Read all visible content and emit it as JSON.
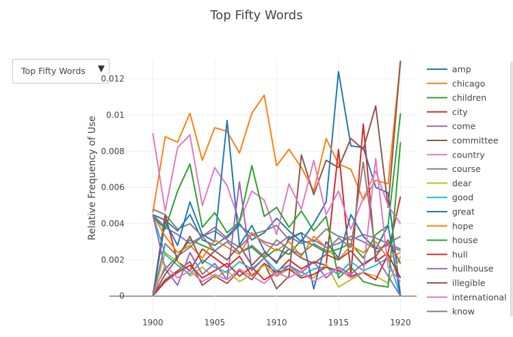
{
  "title": "Top Fifty Words",
  "dropdown": {
    "selected": "Top Fifty Words"
  },
  "chart_data": {
    "type": "line",
    "title": "Top Fifty Words",
    "xlabel": "",
    "ylabel": "Relative Frequency of Use",
    "x": [
      1900,
      1901,
      1902,
      1903,
      1904,
      1905,
      1906,
      1907,
      1908,
      1909,
      1910,
      1911,
      1912,
      1913,
      1914,
      1915,
      1916,
      1917,
      1918,
      1919,
      1920
    ],
    "xlim": [
      1896.5,
      1921.3
    ],
    "ylim": [
      -0.0009,
      0.0131
    ],
    "xticks": [
      "1900",
      "1905",
      "1910",
      "1915",
      "1920"
    ],
    "xtick_values": [
      1900,
      1905,
      1910,
      1915,
      1920
    ],
    "yticks": [
      "0",
      "0.002",
      "0.004",
      "0.006",
      "0.008",
      "0.01",
      "0.012"
    ],
    "ytick_values": [
      0,
      0.002,
      0.004,
      0.006,
      0.008,
      0.01,
      0.012
    ],
    "grid": true,
    "legend_position": "right",
    "series": [
      {
        "name": "amp",
        "color": "#1f77b4",
        "values": [
          0.0045,
          0.0042,
          0.0036,
          0.0045,
          0.0031,
          0.0028,
          0.0033,
          0.004,
          0.0031,
          0.0035,
          0.0043,
          0.0036,
          0.003,
          0.004,
          0.0052,
          0.0124,
          0.0083,
          0.0082,
          0.006,
          0.0057,
          0.0
        ]
      },
      {
        "name": "chicago",
        "color": "#ff7f0e",
        "values": [
          0.0046,
          0.0088,
          0.0085,
          0.0101,
          0.0075,
          0.0093,
          0.0091,
          0.0079,
          0.0101,
          0.0111,
          0.0072,
          0.0081,
          0.0071,
          0.0058,
          0.0087,
          0.0073,
          0.007,
          0.0053,
          0.0064,
          0.0062,
          0.013
        ]
      },
      {
        "name": "children",
        "color": "#2ca02c",
        "values": [
          0.0002,
          0.0015,
          0.0022,
          0.0031,
          0.0028,
          0.0025,
          0.003,
          0.0024,
          0.0027,
          0.0021,
          0.0026,
          0.0023,
          0.0031,
          0.0028,
          0.0024,
          0.0026,
          0.0029,
          0.0021,
          0.0034,
          0.0039,
          0.0101
        ]
      },
      {
        "name": "city",
        "color": "#d62728",
        "values": [
          0.0,
          0.0045,
          0.0019,
          0.0014,
          0.0026,
          0.0021,
          0.0016,
          0.0022,
          0.0011,
          0.0018,
          0.0013,
          0.002,
          0.0015,
          0.0019,
          0.0017,
          0.0081,
          0.0012,
          0.0095,
          0.0019,
          0.0024,
          0.0055
        ]
      },
      {
        "name": "come",
        "color": "#9467bd",
        "values": [
          0.0045,
          0.0038,
          0.0034,
          0.0029,
          0.0033,
          0.0036,
          0.0031,
          0.0027,
          0.0034,
          0.003,
          0.0028,
          0.0033,
          0.0029,
          0.0031,
          0.0027,
          0.0029,
          0.0033,
          0.003,
          0.0026,
          0.0028,
          0.0025
        ]
      },
      {
        "name": "committee",
        "color": "#8c564b",
        "values": [
          0.0,
          0.0009,
          0.0014,
          0.0019,
          0.0006,
          0.0011,
          0.0007,
          0.0014,
          0.0009,
          0.0018,
          0.0004,
          0.0011,
          0.0078,
          0.0056,
          0.0075,
          0.0071,
          0.0087,
          0.0081,
          0.0105,
          0.0049,
          0.013
        ]
      },
      {
        "name": "country",
        "color": "#e377c2",
        "values": [
          0.009,
          0.0047,
          0.0082,
          0.0089,
          0.005,
          0.0071,
          0.0061,
          0.0041,
          0.0058,
          0.0053,
          0.0034,
          0.0062,
          0.0048,
          0.0075,
          0.0045,
          0.0058,
          0.0037,
          0.0054,
          0.0069,
          0.005,
          0.004
        ]
      },
      {
        "name": "course",
        "color": "#7f7f7f",
        "values": [
          0.0048,
          0.0045,
          0.0037,
          0.004,
          0.0033,
          0.0038,
          0.0032,
          0.0039,
          0.0034,
          0.0036,
          0.0039,
          0.0031,
          0.0035,
          0.003,
          0.0037,
          0.0033,
          0.0031,
          0.0034,
          0.0032,
          0.0029,
          0.0033
        ]
      },
      {
        "name": "dear",
        "color": "#bcbd22",
        "values": [
          0.0,
          0.0024,
          0.0019,
          0.0011,
          0.0016,
          0.001,
          0.0014,
          0.0008,
          0.0012,
          0.0017,
          0.0011,
          0.0015,
          0.0013,
          0.001,
          0.0018,
          0.0005,
          0.0009,
          0.0013,
          0.0011,
          0.0007,
          0.0022
        ]
      },
      {
        "name": "good",
        "color": "#17becf",
        "values": [
          0.0045,
          0.0023,
          0.0017,
          0.0012,
          0.002,
          0.0016,
          0.0013,
          0.0019,
          0.0015,
          0.0021,
          0.0014,
          0.0017,
          0.0011,
          0.0015,
          0.0016,
          0.0012,
          0.0019,
          0.0014,
          0.0017,
          0.0021,
          0.0
        ]
      },
      {
        "name": "great",
        "color": "#1f77b4",
        "values": [
          0.0,
          0.0041,
          0.0028,
          0.0052,
          0.0034,
          0.003,
          0.0097,
          0.0028,
          0.0039,
          0.0025,
          0.0018,
          0.0032,
          0.0035,
          0.0004,
          0.003,
          0.0021,
          0.0045,
          0.0033,
          0.0026,
          0.0039,
          0.0
        ]
      },
      {
        "name": "hope",
        "color": "#ff7f0e",
        "values": [
          0.0045,
          0.0033,
          0.0024,
          0.0028,
          0.0021,
          0.0031,
          0.0027,
          0.0023,
          0.0035,
          0.0029,
          0.0025,
          0.003,
          0.0022,
          0.0033,
          0.0027,
          0.002,
          0.0028,
          0.0024,
          0.003,
          0.0021,
          0.0024
        ]
      },
      {
        "name": "house",
        "color": "#2ca02c",
        "values": [
          0.0044,
          0.0037,
          0.0058,
          0.0073,
          0.0038,
          0.0046,
          0.0035,
          0.0041,
          0.0072,
          0.0044,
          0.0049,
          0.0038,
          0.0047,
          0.0036,
          0.0044,
          0.001,
          0.0016,
          0.0008,
          0.0006,
          0.0005,
          0.0085
        ]
      },
      {
        "name": "hull",
        "color": "#d62728",
        "values": [
          0.0,
          0.0008,
          0.0013,
          0.0017,
          0.001,
          0.0014,
          0.0018,
          0.0011,
          0.0016,
          0.0009,
          0.0013,
          0.0015,
          0.001,
          0.0012,
          0.0016,
          0.0014,
          0.0011,
          0.0013,
          0.0009,
          0.0023,
          0.001
        ]
      },
      {
        "name": "hullhouse",
        "color": "#9467bd",
        "values": [
          0.0045,
          0.0015,
          0.0006,
          0.0024,
          0.0012,
          0.0018,
          0.0009,
          0.0063,
          0.0014,
          0.0021,
          0.0011,
          0.0017,
          0.0013,
          0.0019,
          0.001,
          0.0016,
          0.0012,
          0.0018,
          0.0022,
          0.0011,
          0.0
        ]
      },
      {
        "name": "illegible",
        "color": "#8c564b",
        "values": [
          0.0,
          0.0012,
          0.0021,
          0.0033,
          0.0018,
          0.0025,
          0.002,
          0.0028,
          0.0017,
          0.0024,
          0.0019,
          0.0026,
          0.0021,
          0.0018,
          0.0023,
          0.002,
          0.0025,
          0.0017,
          0.0022,
          0.0031,
          0.0018
        ]
      },
      {
        "name": "international",
        "color": "#e377c2",
        "values": [
          0.0,
          0.0017,
          0.001,
          0.0014,
          0.0008,
          0.0012,
          0.0009,
          0.0015,
          0.0011,
          0.0007,
          0.0013,
          0.001,
          0.0014,
          0.0008,
          0.0012,
          0.0015,
          0.001,
          0.0013,
          0.0076,
          0.0016,
          0.0008
        ]
      },
      {
        "name": "know",
        "color": "#7f7f7f",
        "values": [
          0.0,
          0.0029,
          0.0022,
          0.0027,
          0.0033,
          0.0025,
          0.003,
          0.0024,
          0.0028,
          0.0022,
          0.0031,
          0.0026,
          0.0023,
          0.0029,
          0.0025,
          0.0032,
          0.0027,
          0.0074,
          0.0024,
          0.0029,
          0.0026
        ]
      }
    ]
  }
}
